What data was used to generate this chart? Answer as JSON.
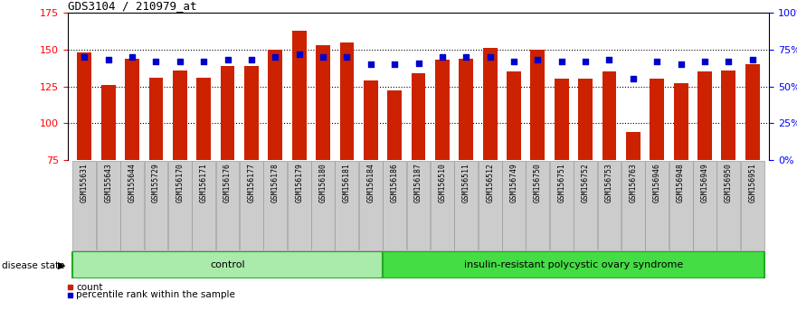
{
  "title": "GDS3104 / 210979_at",
  "samples": [
    "GSM155631",
    "GSM155643",
    "GSM155644",
    "GSM155729",
    "GSM156170",
    "GSM156171",
    "GSM156176",
    "GSM156177",
    "GSM156178",
    "GSM156179",
    "GSM156180",
    "GSM156181",
    "GSM156184",
    "GSM156186",
    "GSM156187",
    "GSM156510",
    "GSM156511",
    "GSM156512",
    "GSM156749",
    "GSM156750",
    "GSM156751",
    "GSM156752",
    "GSM156753",
    "GSM156763",
    "GSM156946",
    "GSM156948",
    "GSM156949",
    "GSM156950",
    "GSM156951"
  ],
  "counts": [
    148,
    126,
    144,
    131,
    136,
    131,
    139,
    139,
    150,
    163,
    153,
    155,
    129,
    122,
    134,
    143,
    144,
    151,
    135,
    150,
    130,
    130,
    135,
    94,
    130,
    127,
    135,
    136,
    140
  ],
  "percentile_ranks": [
    70,
    68,
    70,
    67,
    67,
    67,
    68,
    68,
    70,
    72,
    70,
    70,
    65,
    65,
    66,
    70,
    70,
    70,
    67,
    68,
    67,
    67,
    68,
    55,
    67,
    65,
    67,
    67,
    68
  ],
  "control_count": 13,
  "disease_count": 16,
  "ylim_left": [
    75,
    175
  ],
  "ylim_right": [
    0,
    100
  ],
  "yticks_left": [
    75,
    100,
    125,
    150,
    175
  ],
  "yticks_right": [
    0,
    25,
    50,
    75,
    100
  ],
  "ytick_labels_right": [
    "0%",
    "25%",
    "50%",
    "75%",
    "100%"
  ],
  "bar_color": "#cc2200",
  "marker_color": "#0000cc",
  "control_label": "control",
  "disease_label": "insulin-resistant polycystic ovary syndrome",
  "disease_state_label": "disease state",
  "legend_count": "count",
  "legend_percentile": "percentile rank within the sample",
  "bar_width": 0.6,
  "control_bg": "#aaeaaa",
  "disease_bg": "#44dd44",
  "xtick_box_color": "#cccccc",
  "xtick_box_edge": "#999999"
}
